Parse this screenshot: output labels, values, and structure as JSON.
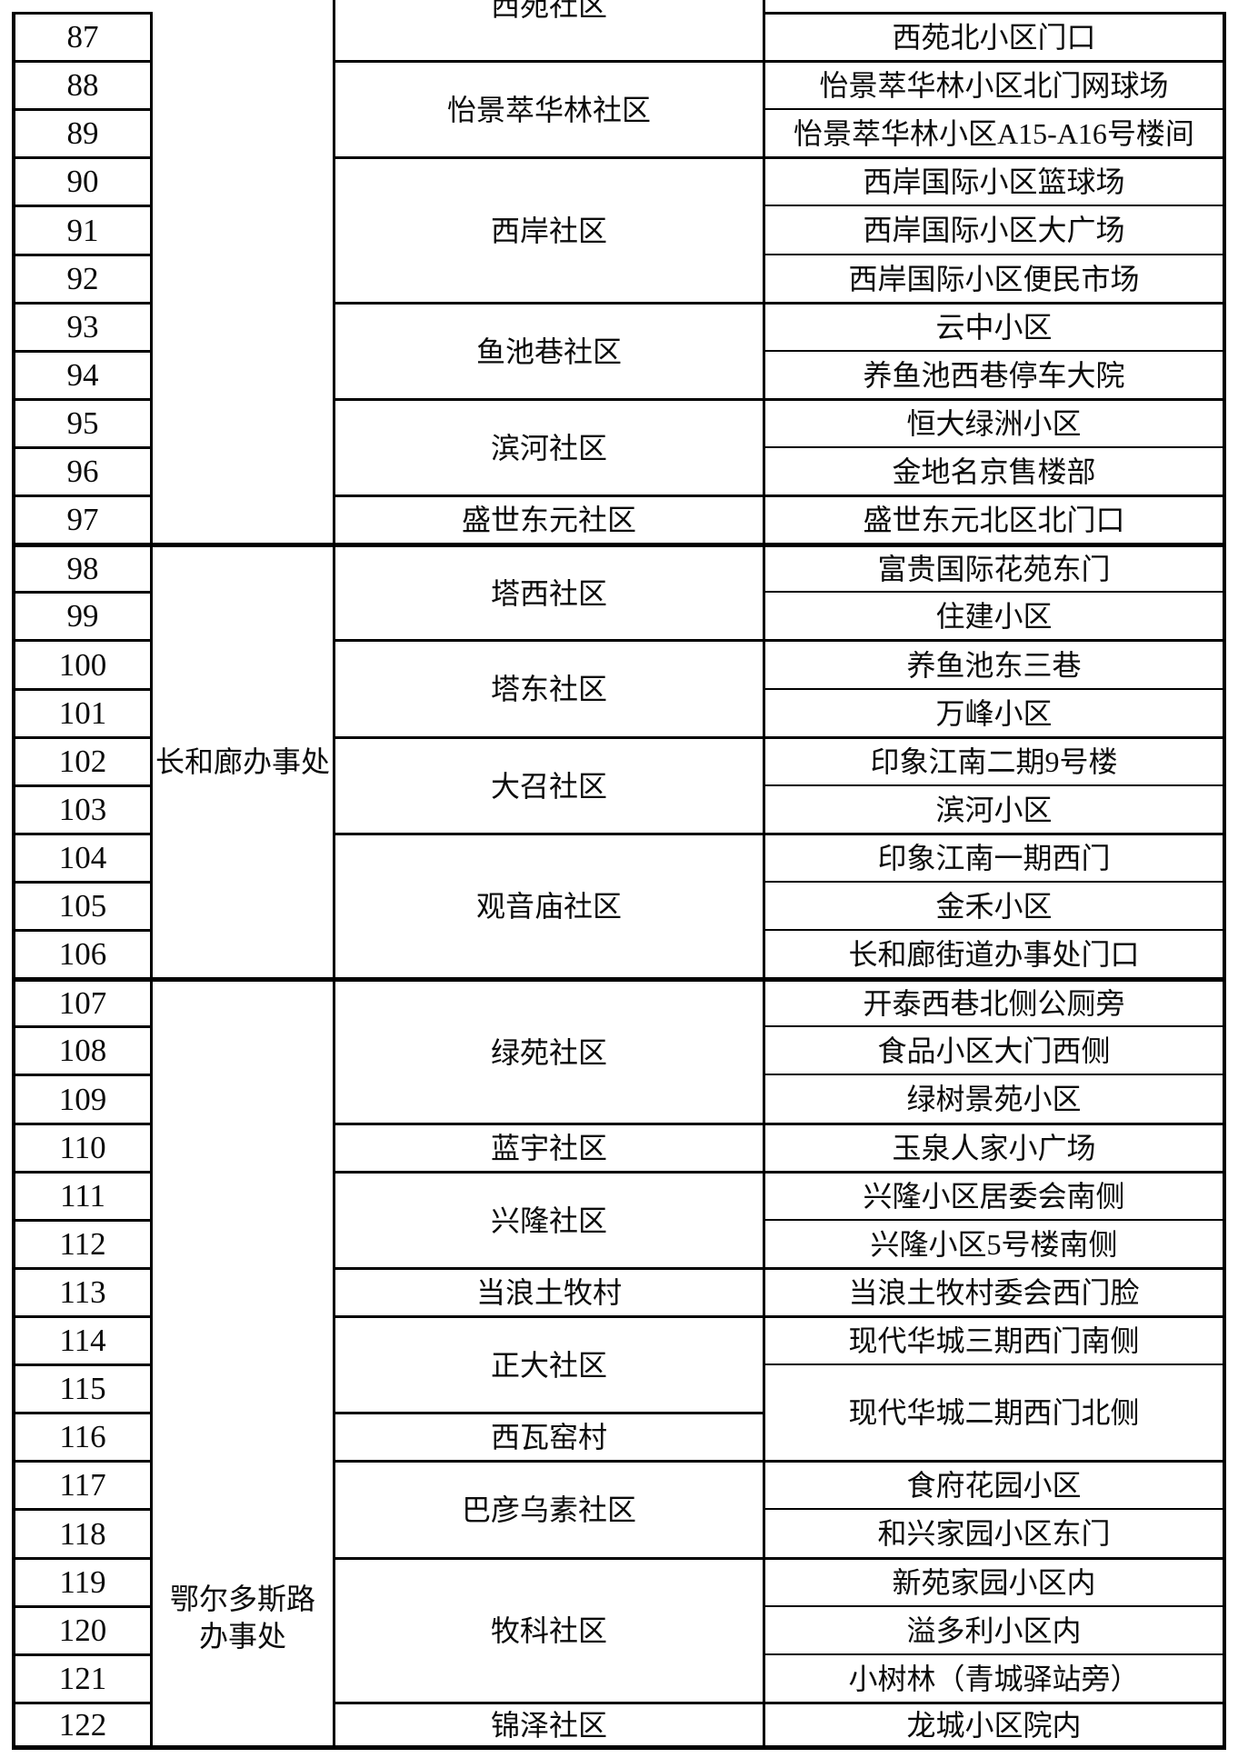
{
  "table": {
    "offices": [
      {
        "label": "",
        "lines": [],
        "row_span": 11,
        "valign": "center"
      },
      {
        "label": "长和廊办事处",
        "lines": [
          "长和廊办事处"
        ],
        "row_span": 9,
        "valign": "center"
      },
      {
        "label": "鄂尔多斯路办事处",
        "lines": [
          "鄂尔多斯路",
          "办事处"
        ],
        "row_span": 16,
        "valign": "low"
      }
    ],
    "rows": [
      {
        "num": "87",
        "community": {
          "text": "西苑社区",
          "span": 1,
          "clipped": true
        },
        "location": {
          "text": "西苑北小区门口",
          "span": 1
        }
      },
      {
        "num": "88",
        "community": {
          "text": "怡景萃华林社区",
          "span": 2
        },
        "location": {
          "text": "怡景萃华林小区北门网球场",
          "span": 1
        }
      },
      {
        "num": "89",
        "location": {
          "text": "怡景萃华林小区A15-A16号楼间",
          "span": 1
        }
      },
      {
        "num": "90",
        "community": {
          "text": "西岸社区",
          "span": 3
        },
        "location": {
          "text": "西岸国际小区篮球场",
          "span": 1
        }
      },
      {
        "num": "91",
        "location": {
          "text": "西岸国际小区大广场",
          "span": 1
        }
      },
      {
        "num": "92",
        "location": {
          "text": "西岸国际小区便民市场",
          "span": 1
        }
      },
      {
        "num": "93",
        "community": {
          "text": "鱼池巷社区",
          "span": 2
        },
        "location": {
          "text": "云中小区",
          "span": 1
        }
      },
      {
        "num": "94",
        "location": {
          "text": "养鱼池西巷停车大院",
          "span": 1
        }
      },
      {
        "num": "95",
        "community": {
          "text": "滨河社区",
          "span": 2
        },
        "location": {
          "text": "恒大绿洲小区",
          "span": 1
        }
      },
      {
        "num": "96",
        "location": {
          "text": "金地名京售楼部",
          "span": 1
        }
      },
      {
        "num": "97",
        "community": {
          "text": "盛世东元社区",
          "span": 1
        },
        "location": {
          "text": "盛世东元北区北门口",
          "span": 1
        }
      },
      {
        "num": "98",
        "community": {
          "text": "塔西社区",
          "span": 2
        },
        "location": {
          "text": "富贵国际花苑东门",
          "span": 1
        }
      },
      {
        "num": "99",
        "location": {
          "text": "住建小区",
          "span": 1
        }
      },
      {
        "num": "100",
        "community": {
          "text": "塔东社区",
          "span": 2
        },
        "location": {
          "text": "养鱼池东三巷",
          "span": 1
        }
      },
      {
        "num": "101",
        "location": {
          "text": "万峰小区",
          "span": 1
        }
      },
      {
        "num": "102",
        "community": {
          "text": "大召社区",
          "span": 2
        },
        "location": {
          "text": "印象江南二期9号楼",
          "span": 1
        }
      },
      {
        "num": "103",
        "location": {
          "text": "滨河小区",
          "span": 1
        }
      },
      {
        "num": "104",
        "community": {
          "text": "观音庙社区",
          "span": 3
        },
        "location": {
          "text": "印象江南一期西门",
          "span": 1
        }
      },
      {
        "num": "105",
        "location": {
          "text": "金禾小区",
          "span": 1
        }
      },
      {
        "num": "106",
        "location": {
          "text": "长和廊街道办事处门口",
          "span": 1
        }
      },
      {
        "num": "107",
        "community": {
          "text": "绿苑社区",
          "span": 3
        },
        "location": {
          "text": "开泰西巷北侧公厕旁",
          "span": 1
        }
      },
      {
        "num": "108",
        "location": {
          "text": "食品小区大门西侧",
          "span": 1
        }
      },
      {
        "num": "109",
        "location": {
          "text": "绿树景苑小区",
          "span": 1
        }
      },
      {
        "num": "110",
        "community": {
          "text": "蓝宇社区",
          "span": 1
        },
        "location": {
          "text": "玉泉人家小广场",
          "span": 1
        }
      },
      {
        "num": "111",
        "community": {
          "text": "兴隆社区",
          "span": 2
        },
        "location": {
          "text": "兴隆小区居委会南侧",
          "span": 1
        }
      },
      {
        "num": "112",
        "location": {
          "text": "兴隆小区5号楼南侧",
          "span": 1
        }
      },
      {
        "num": "113",
        "community": {
          "text": "当浪土牧村",
          "span": 1
        },
        "location": {
          "text": "当浪土牧村委会西门脸",
          "span": 1
        }
      },
      {
        "num": "114",
        "community": {
          "text": "正大社区",
          "span": 2
        },
        "location": {
          "text": "现代华城三期西门南侧",
          "span": 1
        }
      },
      {
        "num": "115",
        "location": {
          "text": "现代华城二期西门北侧",
          "span": 2
        }
      },
      {
        "num": "116",
        "community": {
          "text": "西瓦窑村",
          "span": 1
        }
      },
      {
        "num": "117",
        "community": {
          "text": "巴彦乌素社区",
          "span": 2
        },
        "location": {
          "text": "食府花园小区",
          "span": 1
        }
      },
      {
        "num": "118",
        "location": {
          "text": "和兴家园小区东门",
          "span": 1
        }
      },
      {
        "num": "119",
        "community": {
          "text": "牧科社区",
          "span": 3
        },
        "location": {
          "text": "新苑家园小区内",
          "span": 1
        }
      },
      {
        "num": "120",
        "location": {
          "text": "溢多利小区内",
          "span": 1
        }
      },
      {
        "num": "121",
        "location": {
          "text": "小树林（青城驿站旁）",
          "span": 1
        }
      },
      {
        "num": "122",
        "community": {
          "text": "锦泽社区",
          "span": 1
        },
        "location": {
          "text": "龙城小区院内",
          "span": 1
        }
      }
    ]
  }
}
